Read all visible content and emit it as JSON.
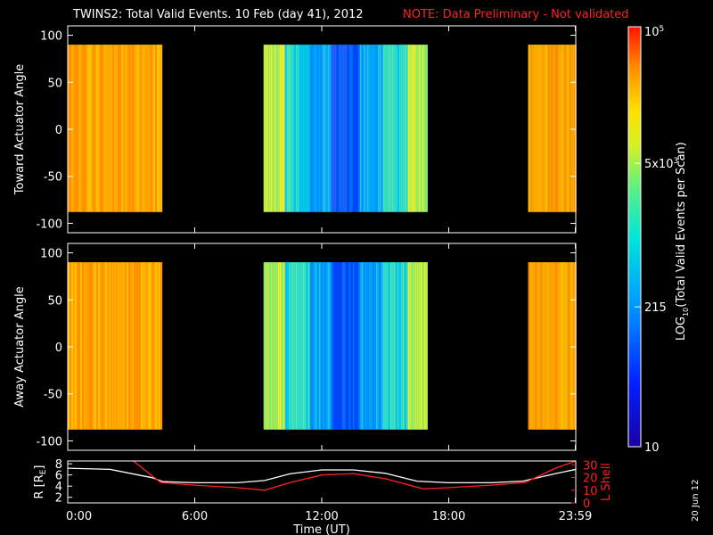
{
  "title": "TWINS2: Total Valid Events. 10 Feb (day  41), 2012",
  "note": "NOTE: Data Preliminary - Not validated",
  "date_stamp": "20 Jun 12",
  "colors": {
    "note": "#ff2020",
    "lshell_line": "#ff2020",
    "r_line": "#ffffff",
    "background": "#000000"
  },
  "chart_data": [
    {
      "type": "heatmap",
      "ylabel": "Toward Actuator Angle",
      "ylim": [
        -110,
        110
      ],
      "yticks": [
        100,
        50,
        0,
        -50,
        -100
      ],
      "xlim": [
        0,
        24
      ],
      "data_angle_range": [
        -88,
        90
      ],
      "data_segments": [
        {
          "start_h": 0.0,
          "end_h": 4.4,
          "level": "high"
        },
        {
          "start_h": 9.25,
          "end_h": 16.95,
          "level": "low-center"
        },
        {
          "start_h": 21.75,
          "end_h": 24.0,
          "level": "high"
        }
      ]
    },
    {
      "type": "heatmap",
      "ylabel": "Away Actuator Angle",
      "ylim": [
        -110,
        110
      ],
      "yticks": [
        100,
        50,
        0,
        -50,
        -100
      ],
      "xlim": [
        0,
        24
      ],
      "data_angle_range": [
        -88,
        90
      ],
      "data_segments": [
        {
          "start_h": 0.0,
          "end_h": 4.4,
          "level": "high"
        },
        {
          "start_h": 9.25,
          "end_h": 16.95,
          "level": "low-center"
        },
        {
          "start_h": 21.75,
          "end_h": 24.0,
          "level": "high"
        }
      ]
    },
    {
      "type": "line",
      "ylabel_left": "R [R",
      "ylabel_left_sub": "E",
      "ylabel_left_end": "]",
      "ylabel_right": "L Shell",
      "ylim_left": [
        1,
        8.5
      ],
      "yticks_left": [
        8,
        6,
        4,
        2
      ],
      "ylim_right": [
        0,
        33
      ],
      "yticks_right": [
        30,
        20,
        10,
        0
      ],
      "xlim": [
        0,
        24
      ],
      "xticks": [
        "0:00",
        "6:00",
        "12:00",
        "18:00",
        "23:59"
      ],
      "xtick_hours": [
        0,
        6,
        12,
        18,
        23.98
      ],
      "xlabel": "Time (UT)",
      "series": [
        {
          "axis": "left",
          "x": [
            0,
            2,
            4,
            4.5,
            6,
            8,
            9.3,
            10.5,
            12,
            13.5,
            15,
            16.5,
            18,
            20,
            21.5,
            23,
            24
          ],
          "y": [
            7.2,
            7.0,
            5.5,
            4.8,
            4.6,
            4.6,
            5.0,
            6.2,
            6.9,
            6.9,
            6.3,
            4.9,
            4.6,
            4.6,
            4.9,
            6.2,
            7.0
          ]
        },
        {
          "axis": "right",
          "x": [
            3.1,
            4.4,
            6,
            8,
            9.3,
            10.5,
            12,
            13.5,
            15,
            16.8,
            18,
            20,
            21.6,
            23,
            24
          ],
          "y": [
            33,
            16,
            14,
            12,
            10,
            16,
            22,
            23,
            19,
            11,
            12,
            14,
            16,
            27,
            33
          ]
        }
      ]
    }
  ],
  "colorbar": {
    "label": "LOG",
    "label_sub": "10",
    "label_rest": "(Total Valid Events per Scan)",
    "tick_top_base": "10",
    "tick_top_exp": "5",
    "tick_mid_base": "5x10",
    "tick_mid_exp": "3",
    "tick_low": "215",
    "tick_bottom": "10",
    "tick_positions_log": [
      5,
      3.699,
      2.332,
      1
    ]
  }
}
